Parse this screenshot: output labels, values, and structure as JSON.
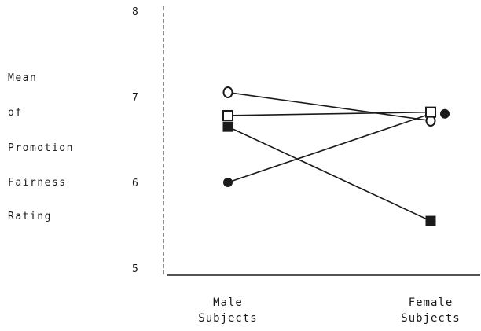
{
  "chart_data": {
    "type": "line",
    "ylabel_lines": [
      "Mean",
      "of",
      "Promotion",
      "Fairness",
      "Rating"
    ],
    "categories": [
      [
        "Male",
        "Subjects"
      ],
      [
        "Female",
        "Subjects"
      ]
    ],
    "yticks": [
      "5",
      "6",
      "7",
      "8"
    ],
    "ylim": [
      5,
      8
    ],
    "grid": false,
    "series": [
      {
        "marker": "open-circle",
        "values": [
          7.05,
          6.72
        ]
      },
      {
        "marker": "open-square",
        "values": [
          6.78,
          6.82
        ]
      },
      {
        "marker": "filled-square",
        "values": [
          6.65,
          5.55
        ]
      },
      {
        "marker": "filled-circle",
        "values": [
          6.0,
          6.8
        ]
      }
    ],
    "colors": {
      "ink": "#1a1a1a",
      "background": "#ffffff"
    }
  }
}
